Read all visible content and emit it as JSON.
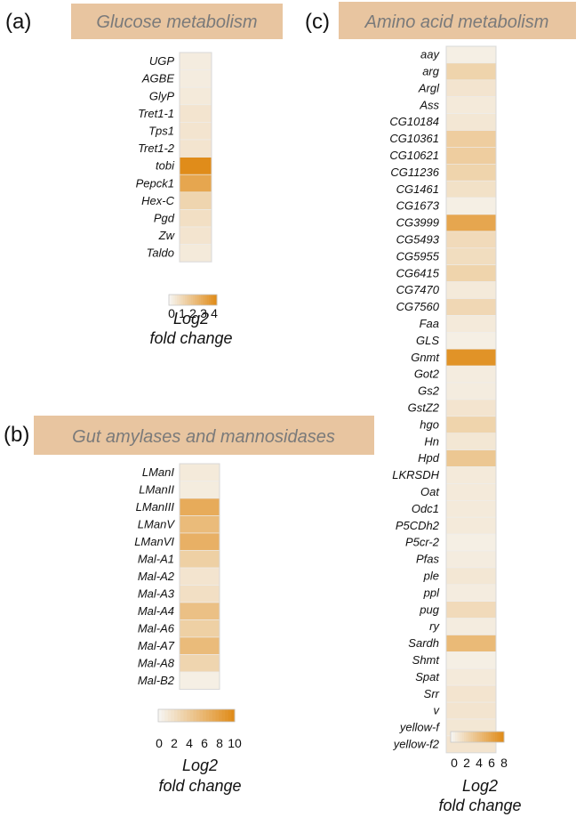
{
  "chart_data": [
    {
      "type": "heatmap",
      "panel": "(a)",
      "title": "Glucose metabolism",
      "rows": [
        "UGP",
        "AGBE",
        "GlyP",
        "Tret1-1",
        "Tps1",
        "Tret1-2",
        "tobi",
        "Pepck1",
        "Hex-C",
        "Pgd",
        "Zw",
        "Taldo"
      ],
      "values": [
        0.3,
        0.3,
        0.4,
        0.6,
        0.6,
        0.6,
        4.0,
        3.0,
        1.2,
        0.8,
        0.6,
        0.4
      ],
      "scale_min": 0,
      "scale_max": 4,
      "colorbar_ticks": [
        "0",
        "1",
        "2",
        "3",
        "4"
      ],
      "colorbar_label": [
        "Log2",
        "fold change"
      ]
    },
    {
      "type": "heatmap",
      "panel": "(b)",
      "title": "Gut amylases and mannosidases",
      "rows": [
        "LManI",
        "LManII",
        "LManIII",
        "LManV",
        "LManVI",
        "Mal-A1",
        "Mal-A2",
        "Mal-A3",
        "Mal-A4",
        "Mal-A6",
        "Mal-A7",
        "Mal-A8",
        "Mal-B2"
      ],
      "values": [
        1.0,
        0.8,
        7.0,
        5.5,
        6.5,
        3.5,
        1.5,
        2.0,
        5.0,
        3.5,
        5.5,
        3.0,
        0.5
      ],
      "scale_min": 0,
      "scale_max": 10,
      "colorbar_ticks": [
        "0",
        "2",
        "4",
        "6",
        "8",
        "10"
      ],
      "colorbar_label": [
        "Log2",
        "fold change"
      ]
    },
    {
      "type": "heatmap",
      "panel": "(c)",
      "title": "Amino acid metabolism",
      "rows": [
        "aay",
        "arg",
        "Argl",
        "Ass",
        "CG10184",
        "CG10361",
        "CG10621",
        "CG11236",
        "CG1461",
        "CG1673",
        "CG3999",
        "CG5493",
        "CG5955",
        "CG6415",
        "CG7470",
        "CG7560",
        "Faa",
        "GLS",
        "Gnmt",
        "Got2",
        "Gs2",
        "GstZ2",
        "hgo",
        "Hn",
        "Hpd",
        "LKRSDH",
        "Oat",
        "Odc1",
        "P5CDh2",
        "P5cr-2",
        "Pfas",
        "ple",
        "ppl",
        "pug",
        "ry",
        "Sardh",
        "Shmt",
        "Spat",
        "Srr",
        "v",
        "yellow-f",
        "yellow-f2"
      ],
      "values": [
        0.4,
        2.5,
        1.2,
        0.8,
        1.0,
        3.0,
        3.0,
        2.5,
        1.5,
        0.4,
        6.0,
        2.0,
        1.8,
        2.5,
        0.8,
        2.2,
        0.8,
        0.4,
        7.5,
        0.6,
        0.6,
        1.2,
        2.5,
        1.0,
        3.5,
        0.8,
        0.8,
        0.8,
        0.8,
        0.4,
        0.6,
        1.0,
        0.6,
        2.0,
        0.6,
        4.5,
        0.4,
        0.8,
        1.2,
        1.2,
        1.0,
        1.2
      ],
      "scale_min": 0,
      "scale_max": 8,
      "colorbar_ticks": [
        "0",
        "2",
        "4",
        "6",
        "8"
      ],
      "colorbar_label": [
        "Log2",
        "fold change"
      ]
    }
  ],
  "colors": {
    "low": "#f6f4ef",
    "high": "#e08c1a",
    "title_box": "#e8c5a0"
  }
}
